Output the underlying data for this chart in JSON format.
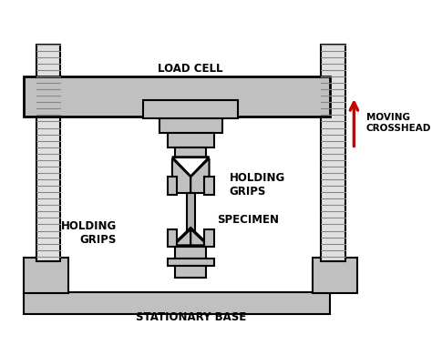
{
  "bg_color": "#ffffff",
  "gray_fill": "#c0c0c0",
  "dark_gray": "#a0a0a0",
  "outline_color": "#000000",
  "red_arrow": "#cc0000",
  "lw": 1.5,
  "labels": {
    "load_cell": "LOAD CELL",
    "holding_grips_top": "HOLDING\nGRIPS",
    "specimen": "SPECIMEN",
    "holding_grips_bot": "HOLDING\nGRIPS",
    "moving_crosshead": "MOVING\nCROSSHEAD",
    "stationary_base": "STATIONARY BASE"
  }
}
